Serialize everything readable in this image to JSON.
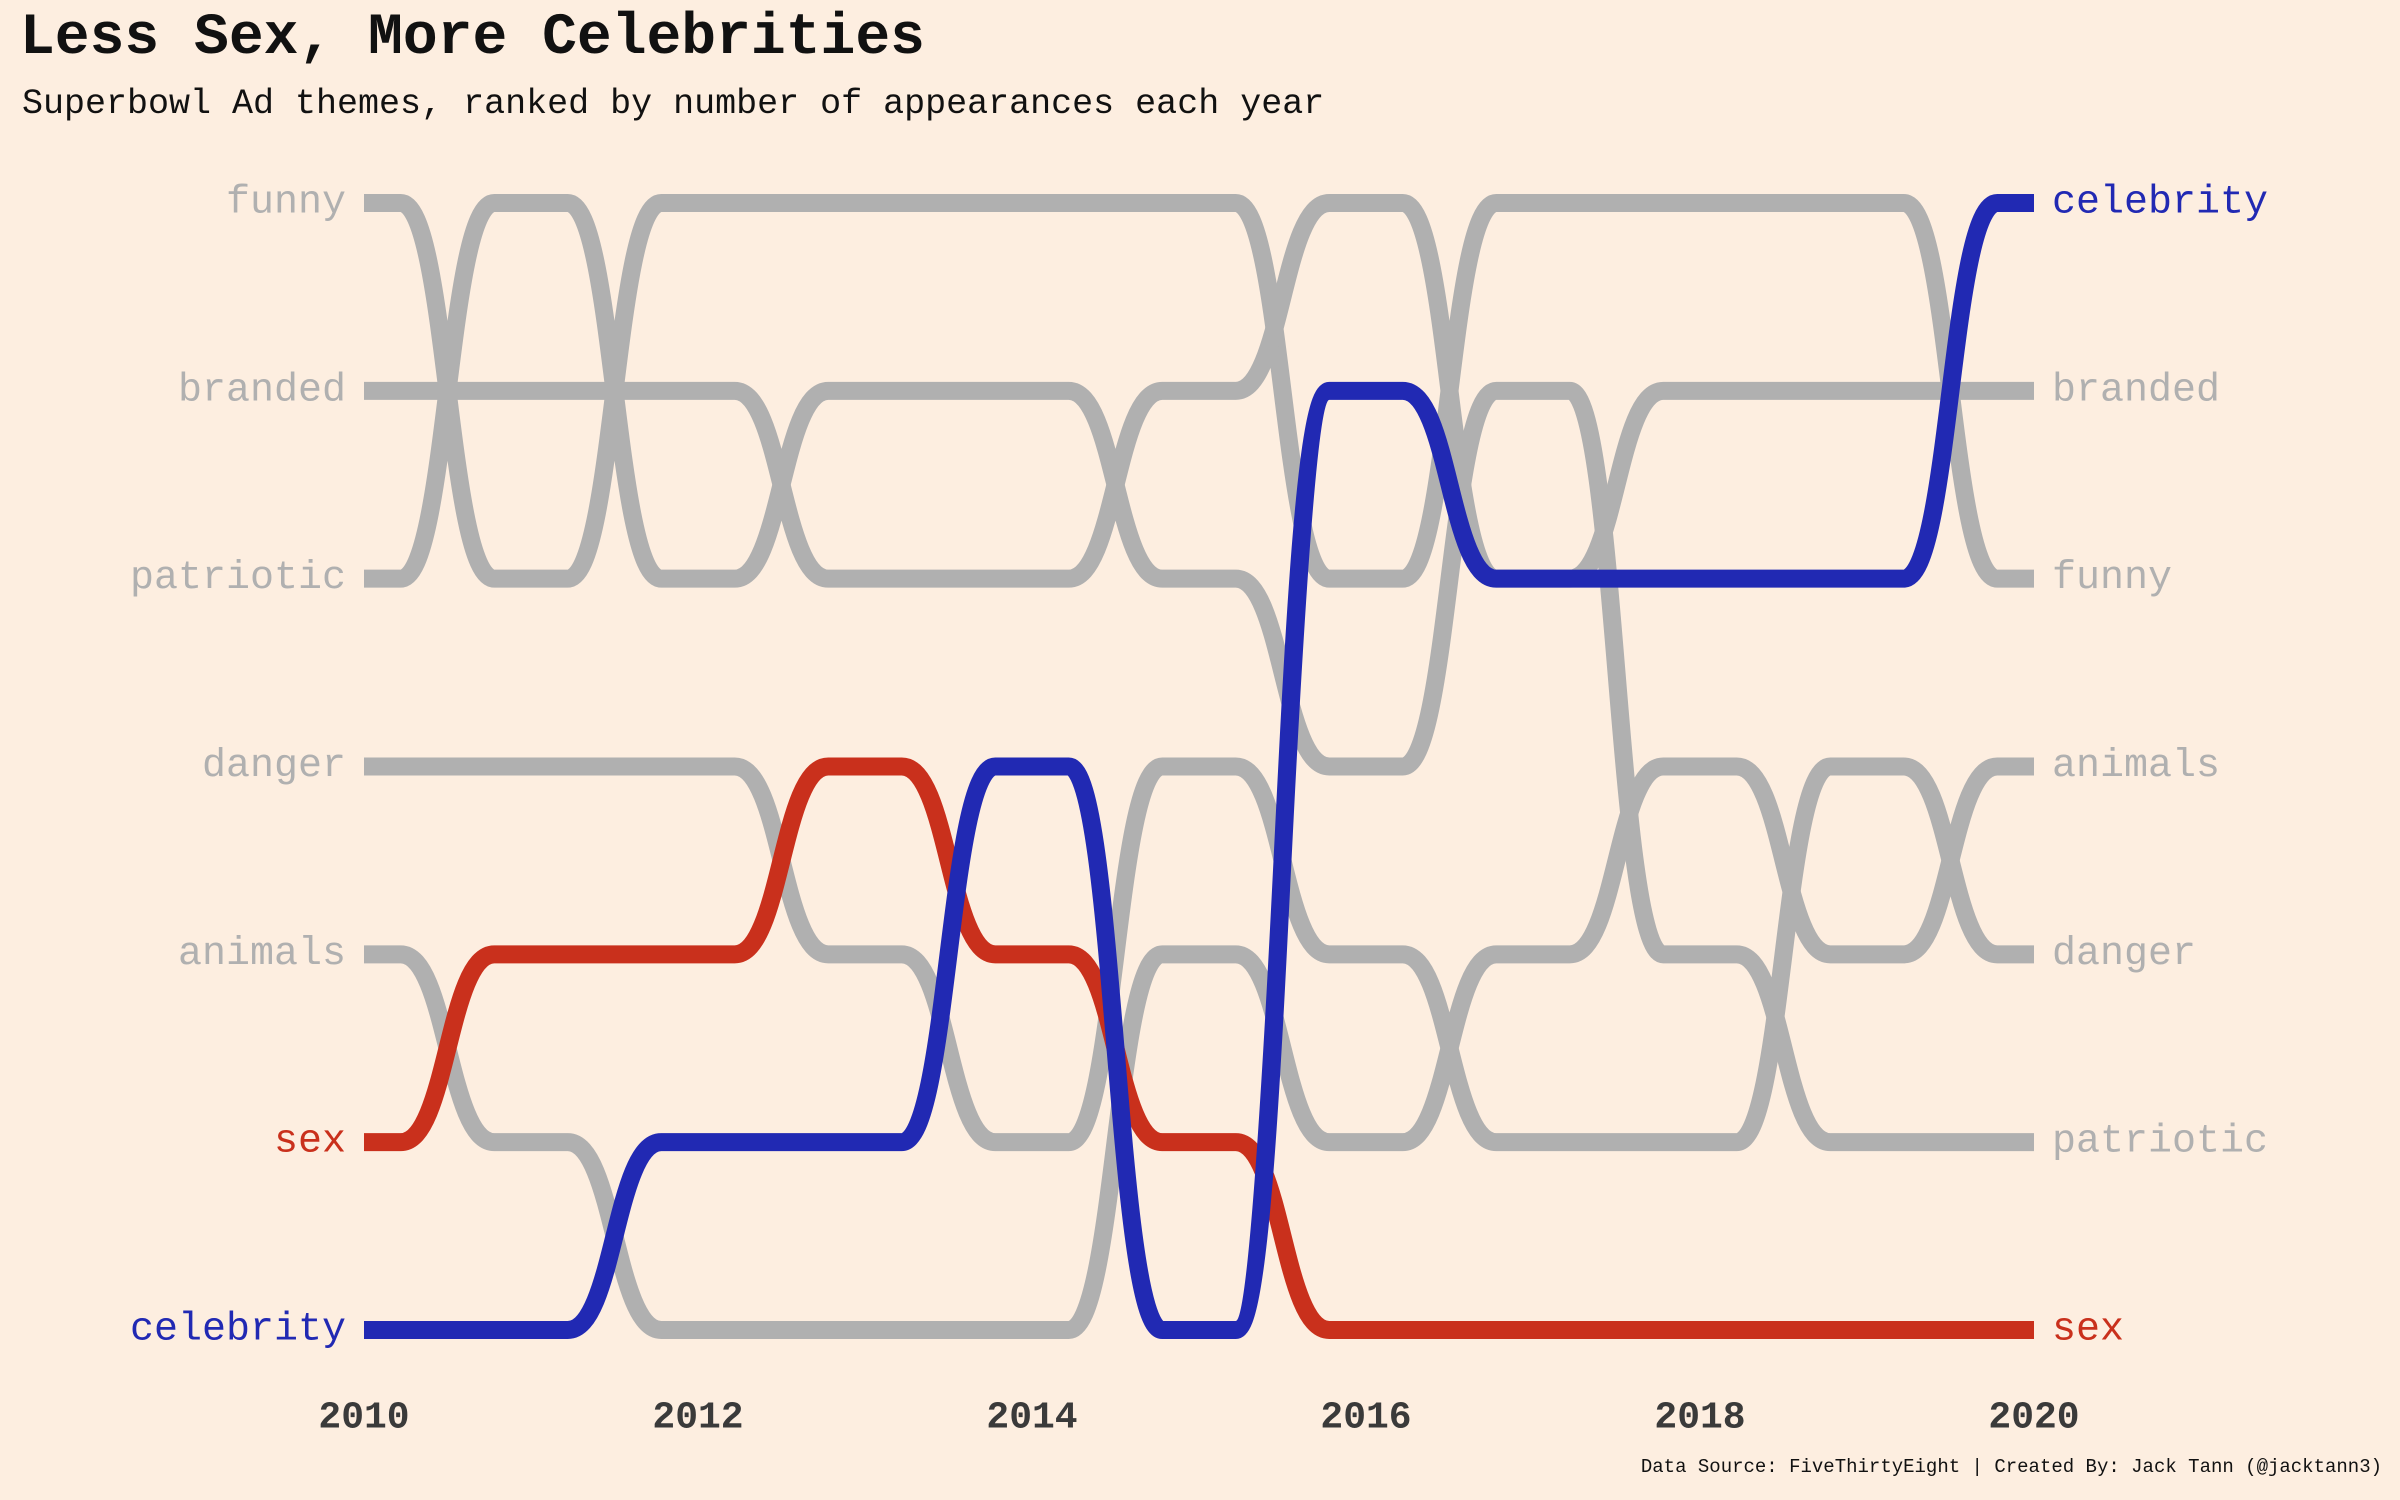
{
  "title": "Less Sex, More Celebrities",
  "subtitle": "Superbowl Ad themes, ranked by number of appearances each year",
  "caption": "Data Source: FiveThirtyEight | Created By: Jack Tann (@jacktann3)",
  "colors": {
    "background": "#fdeee0",
    "default_line": "#b0b0b0",
    "celebrity": "#2129b3",
    "sex": "#c9301c",
    "axis_text": "#3a3a3a"
  },
  "chart_data": {
    "type": "bump",
    "title": "Less Sex, More Celebrities",
    "subtitle": "Superbowl Ad themes, ranked by number of appearances each year",
    "x": [
      2010,
      2011,
      2012,
      2013,
      2014,
      2015,
      2016,
      2017,
      2018,
      2019,
      2020
    ],
    "x_ticks": [
      "2010",
      "2012",
      "2014",
      "2016",
      "2018",
      "2020"
    ],
    "xlim": [
      2010,
      2020
    ],
    "ylim": [
      1,
      7
    ],
    "y_reversed": true,
    "grid": false,
    "legend": "none",
    "left_labels": [
      "funny",
      "branded",
      "patriotic",
      "danger",
      "animals",
      "sex",
      "celebrity"
    ],
    "right_labels": [
      "celebrity",
      "branded",
      "funny",
      "animals",
      "danger",
      "patriotic",
      "sex"
    ],
    "series": [
      {
        "name": "funny",
        "color": "#b0b0b0",
        "values": [
          1,
          3,
          1,
          1,
          1,
          1,
          3,
          1,
          1,
          1,
          3
        ]
      },
      {
        "name": "branded",
        "color": "#b0b0b0",
        "values": [
          2,
          2,
          2,
          3,
          3,
          2,
          1,
          3,
          2,
          2,
          2
        ]
      },
      {
        "name": "patriotic",
        "color": "#b0b0b0",
        "values": [
          3,
          1,
          3,
          2,
          2,
          3,
          4,
          2,
          5,
          6,
          6
        ]
      },
      {
        "name": "danger",
        "color": "#b0b0b0",
        "values": [
          4,
          4,
          4,
          5,
          6,
          4,
          5,
          6,
          6,
          4,
          5
        ]
      },
      {
        "name": "animals",
        "color": "#b0b0b0",
        "values": [
          5,
          6,
          7,
          7,
          7,
          5,
          6,
          5,
          4,
          5,
          4
        ]
      },
      {
        "name": "sex",
        "color": "#c9301c",
        "values": [
          6,
          5,
          5,
          4,
          5,
          6,
          7,
          7,
          7,
          7,
          7
        ]
      },
      {
        "name": "celebrity",
        "color": "#2129b3",
        "values": [
          7,
          7,
          6,
          6,
          4,
          7,
          2,
          3,
          3,
          3,
          1
        ]
      }
    ]
  }
}
